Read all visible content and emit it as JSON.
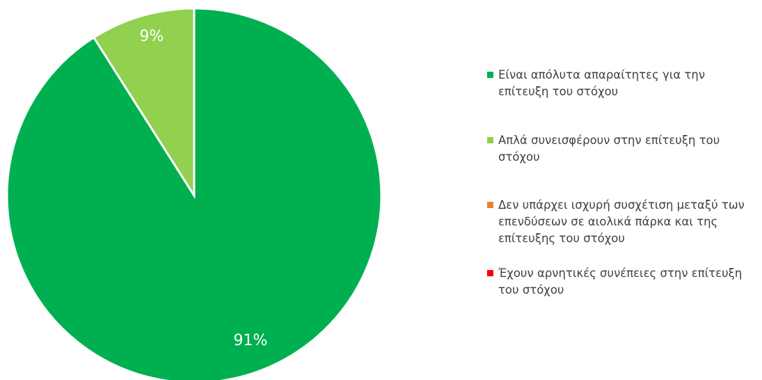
{
  "chart_data": {
    "type": "pie",
    "categories": [
      "Είναι απόλυτα απαραίτητες για την επίτευξη του στόχου",
      "Απλά συνεισφέρουν στην επίτευξη του στόχου",
      "Δεν υπάρχει ισχυρή συσχέτιση μεταξύ των επενδύσεων σε αιολικά πάρκα και της επίτευξης του στόχου",
      "Έχουν αρνητικές συνέπειες στην επίτευξη του στόχου"
    ],
    "values": [
      91,
      9,
      0,
      0
    ],
    "value_labels": [
      "91%",
      "9%",
      null,
      null
    ],
    "colors": [
      "#00b050",
      "#92d050",
      "#ed7d31",
      "#ff0000"
    ],
    "legend": "right"
  }
}
